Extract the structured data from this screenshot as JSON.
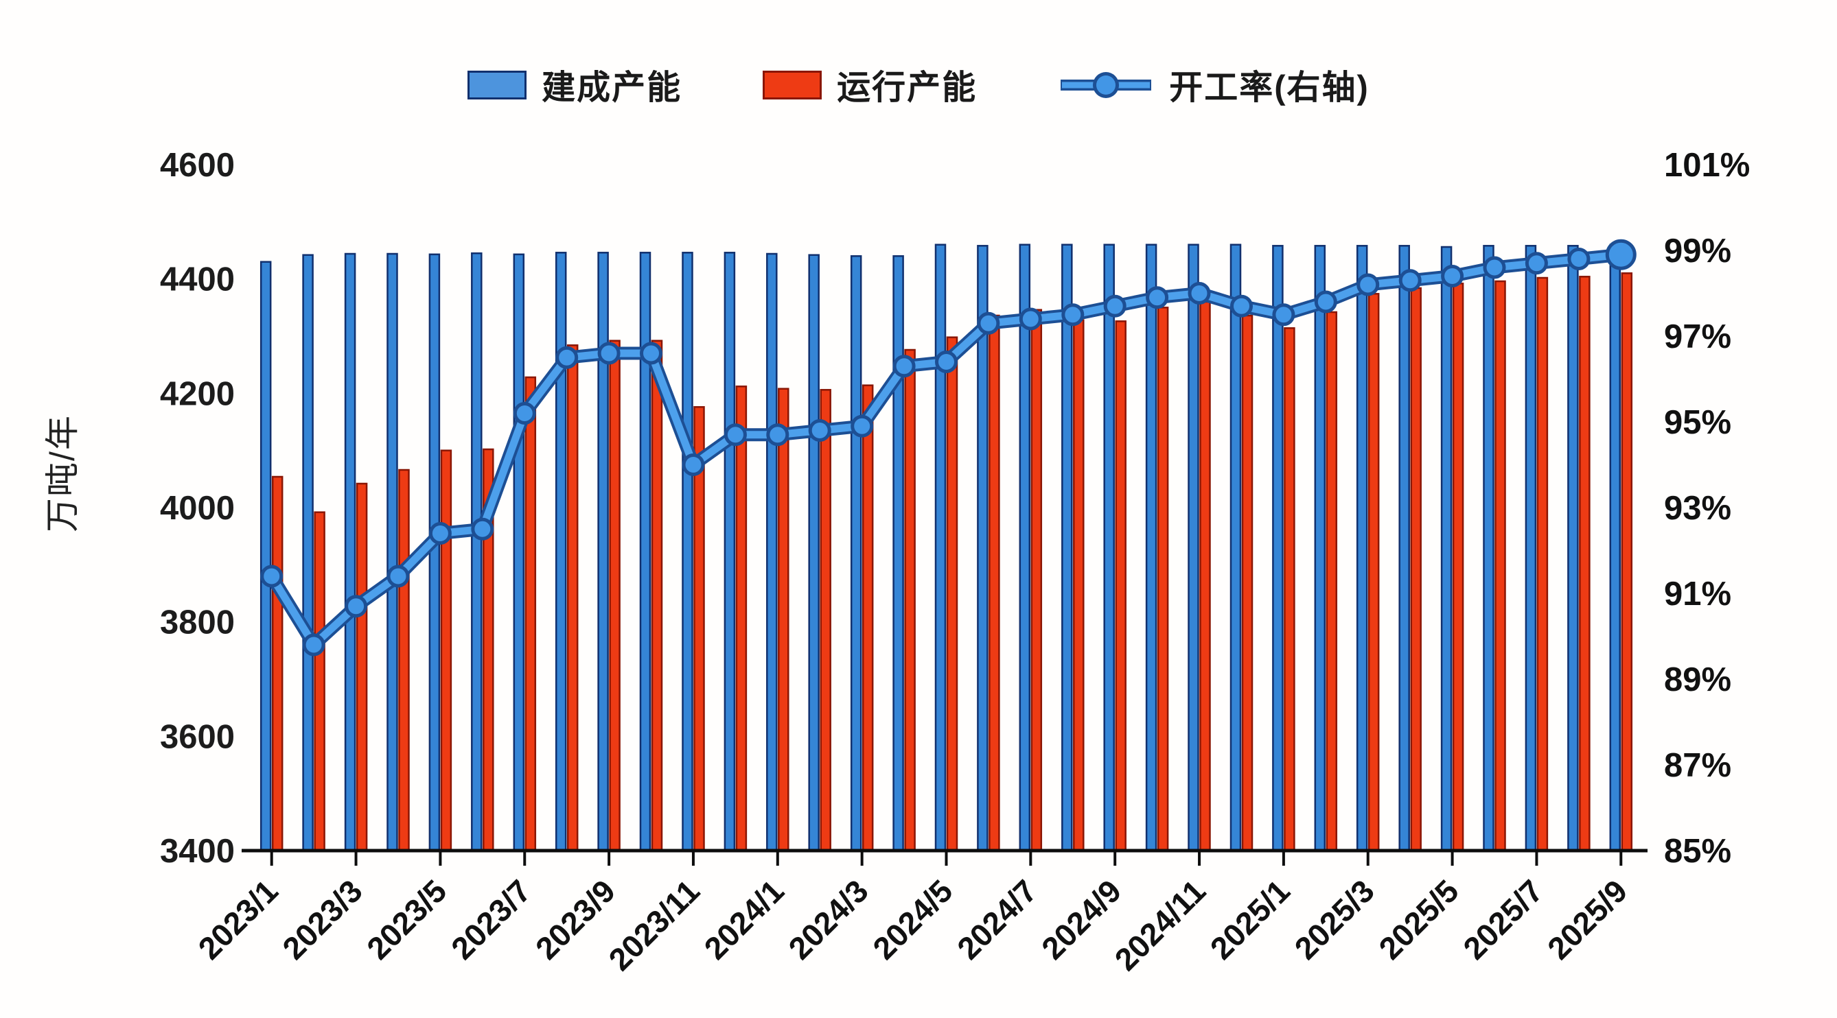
{
  "legend": {
    "items": [
      {
        "label": "建成产能",
        "type": "bar",
        "color": "#4d94dd"
      },
      {
        "label": "运行产能",
        "type": "bar",
        "color": "#ee3b14"
      },
      {
        "label": "开工率(右轴)",
        "type": "line",
        "color": "#4296e6"
      }
    ]
  },
  "left_axis": {
    "title": "万吨/年",
    "ticks": [
      "4600",
      "4400",
      "4200",
      "4000",
      "3800",
      "3600",
      "3400"
    ],
    "min": 3400,
    "max": 4600
  },
  "right_axis": {
    "ticks": [
      "101%",
      "99%",
      "97%",
      "95%",
      "93%",
      "91%",
      "89%",
      "87%",
      "85%"
    ],
    "min": 85,
    "max": 101
  },
  "x_axis": {
    "labels": [
      "2023/1",
      "2023/3",
      "2023/5",
      "2023/7",
      "2023/9",
      "2023/11",
      "2024/1",
      "2024/3",
      "2024/5",
      "2024/7",
      "2024/9",
      "2024/11",
      "2025/1",
      "2025/3",
      "2025/5",
      "2025/7",
      "2025/9"
    ]
  },
  "chart_data": {
    "type": "bar",
    "subtype": "bar+line combo, dual axis",
    "categories": [
      "2023/1",
      "2023/2",
      "2023/3",
      "2023/4",
      "2023/5",
      "2023/6",
      "2023/7",
      "2023/8",
      "2023/9",
      "2023/10",
      "2023/11",
      "2023/12",
      "2024/1",
      "2024/2",
      "2024/3",
      "2024/4",
      "2024/5",
      "2024/6",
      "2024/7",
      "2024/8",
      "2024/9",
      "2024/10",
      "2024/11",
      "2024/12",
      "2025/1",
      "2025/2",
      "2025/3",
      "2025/4",
      "2025/5",
      "2025/6",
      "2025/7",
      "2025/8",
      "2025/9"
    ],
    "series": [
      {
        "name": "建成产能",
        "type": "bar",
        "axis": "left",
        "unit": "万吨/年",
        "color": "#3585d6",
        "values": [
          4430,
          4442,
          4444,
          4444,
          4443,
          4445,
          4443,
          4446,
          4446,
          4446,
          4446,
          4446,
          4444,
          4442,
          4440,
          4440,
          4460,
          4458,
          4460,
          4460,
          4460,
          4460,
          4460,
          4460,
          4458,
          4458,
          4458,
          4458,
          4456,
          4458,
          4458,
          4458,
          4460
        ]
      },
      {
        "name": "运行产能",
        "type": "bar",
        "axis": "left",
        "unit": "万吨/年",
        "color": "#ee3b14",
        "values": [
          4054,
          3992,
          4042,
          4066,
          4100,
          4102,
          4228,
          4284,
          4292,
          4292,
          4176,
          4212,
          4208,
          4206,
          4214,
          4276,
          4298,
          4336,
          4346,
          4328,
          4326,
          4350,
          4360,
          4336,
          4314,
          4342,
          4374,
          4384,
          4392,
          4396,
          4402,
          4404,
          4410
        ]
      },
      {
        "name": "开工率(右轴)",
        "type": "line",
        "axis": "right",
        "unit": "%",
        "color": "#4296e6",
        "values": [
          91.4,
          89.8,
          90.7,
          91.4,
          92.4,
          92.5,
          95.2,
          96.5,
          96.6,
          96.6,
          94.0,
          94.7,
          94.7,
          94.8,
          94.9,
          96.3,
          96.4,
          97.3,
          97.4,
          97.5,
          97.7,
          97.9,
          98.0,
          97.7,
          97.5,
          97.8,
          98.2,
          98.3,
          98.4,
          98.6,
          98.7,
          98.8,
          98.9
        ]
      }
    ],
    "left_axis_range": [
      3400,
      4600
    ],
    "right_axis_range": [
      85,
      101
    ],
    "ylabel_left": "万吨/年",
    "grid": false,
    "legend_position": "top"
  }
}
